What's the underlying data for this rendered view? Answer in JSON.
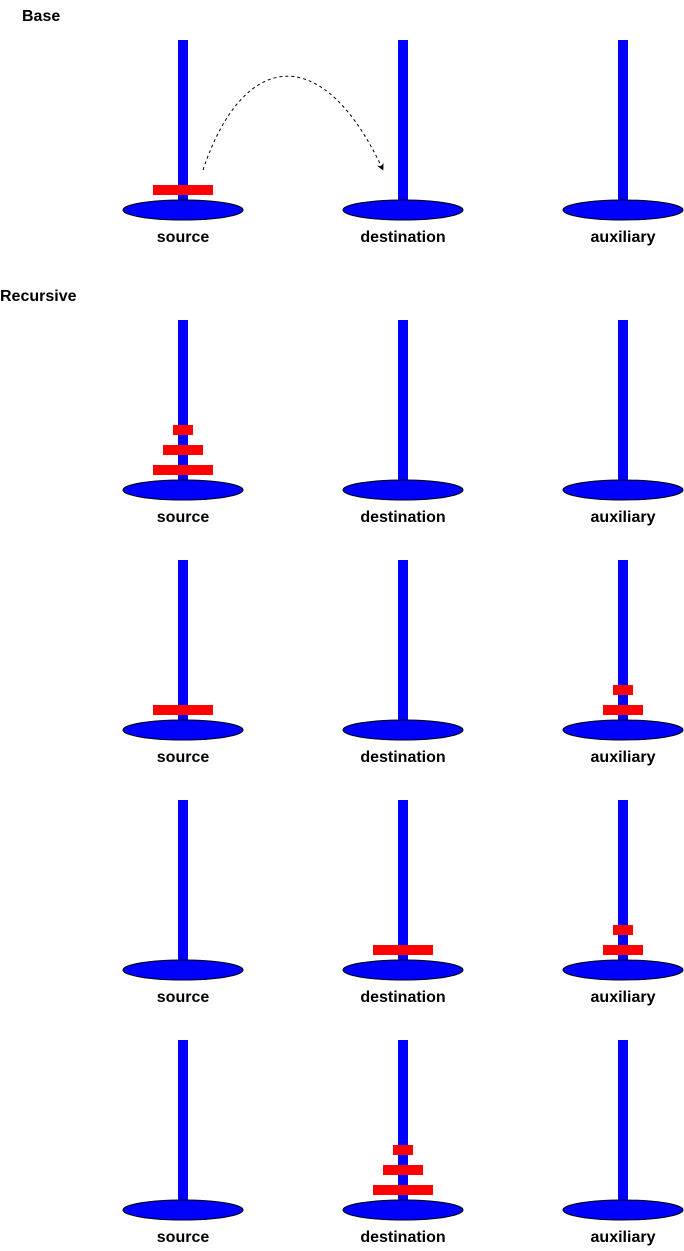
{
  "sections": {
    "base_label": "Base",
    "recursive_label": "Recursive"
  },
  "colors": {
    "peg": "#0000FF",
    "disk": "#FF0000",
    "arrow": "#000000",
    "text": "#000000"
  },
  "peg_names": [
    "source",
    "destination",
    "auxiliary"
  ],
  "diagrams": [
    {
      "section": "base",
      "pegs": [
        {
          "name": "source",
          "disks": [
            3
          ]
        },
        {
          "name": "destination",
          "disks": []
        },
        {
          "name": "auxiliary",
          "disks": []
        }
      ],
      "move_arrow": {
        "from": "source",
        "to": "destination",
        "style": "dashed"
      }
    },
    {
      "section": "recursive",
      "pegs": [
        {
          "name": "source",
          "disks": [
            3,
            2,
            1
          ]
        },
        {
          "name": "destination",
          "disks": []
        },
        {
          "name": "auxiliary",
          "disks": []
        }
      ]
    },
    {
      "section": "recursive",
      "pegs": [
        {
          "name": "source",
          "disks": [
            3
          ]
        },
        {
          "name": "destination",
          "disks": []
        },
        {
          "name": "auxiliary",
          "disks": [
            2,
            1
          ]
        }
      ]
    },
    {
      "section": "recursive",
      "pegs": [
        {
          "name": "source",
          "disks": []
        },
        {
          "name": "destination",
          "disks": [
            3
          ]
        },
        {
          "name": "auxiliary",
          "disks": [
            2,
            1
          ]
        }
      ]
    },
    {
      "section": "recursive",
      "pegs": [
        {
          "name": "source",
          "disks": []
        },
        {
          "name": "destination",
          "disks": [
            3,
            2,
            1
          ]
        },
        {
          "name": "auxiliary",
          "disks": []
        }
      ]
    }
  ]
}
